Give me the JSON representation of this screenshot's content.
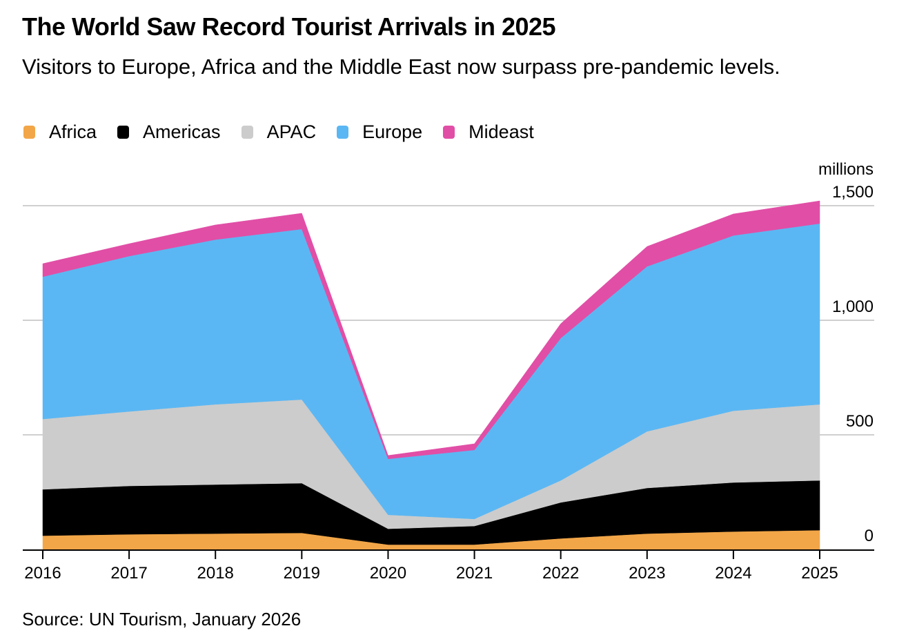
{
  "header": {
    "title": "The World Saw Record Tourist Arrivals in 2025",
    "subtitle": "Visitors to Europe, Africa and the Middle East now surpass pre-pandemic levels."
  },
  "footer": {
    "source": "Source: UN Tourism, January 2026"
  },
  "chart_data": {
    "type": "area",
    "stacked": true,
    "title": "The World Saw Record Tourist Arrivals in 2025",
    "subtitle": "Visitors to Europe, Africa and the Middle East now surpass pre-pandemic levels.",
    "xlabel": "",
    "ylabel": "millions",
    "y_unit_label": "millions",
    "x": [
      "2016",
      "2017",
      "2018",
      "2019",
      "2020",
      "2021",
      "2022",
      "2023",
      "2024",
      "2025"
    ],
    "ylim": [
      0,
      1500
    ],
    "yticks": [
      0,
      500,
      1000,
      1500
    ],
    "ytick_labels": [
      "0",
      "500",
      "1,000",
      "1,500"
    ],
    "y_axis_side": "right",
    "grid": true,
    "legend_position": "top-left",
    "series": [
      {
        "name": "Africa",
        "color": "#f2a648",
        "values": [
          60,
          66,
          69,
          72,
          21,
          21,
          48,
          69,
          78,
          84
        ]
      },
      {
        "name": "Americas",
        "color": "#000000",
        "values": [
          202,
          211,
          214,
          217,
          69,
          81,
          157,
          199,
          214,
          217
        ]
      },
      {
        "name": "APAC",
        "color": "#cccccc",
        "values": [
          307,
          325,
          350,
          365,
          61,
          31,
          96,
          247,
          313,
          332
        ]
      },
      {
        "name": "Europe",
        "color": "#5bb7f3",
        "values": [
          621,
          678,
          719,
          744,
          244,
          301,
          621,
          720,
          765,
          789
        ]
      },
      {
        "name": "Mideast",
        "color": "#e14ea6",
        "values": [
          57,
          54,
          64,
          69,
          15,
          27,
          63,
          87,
          94,
          99
        ]
      }
    ]
  }
}
